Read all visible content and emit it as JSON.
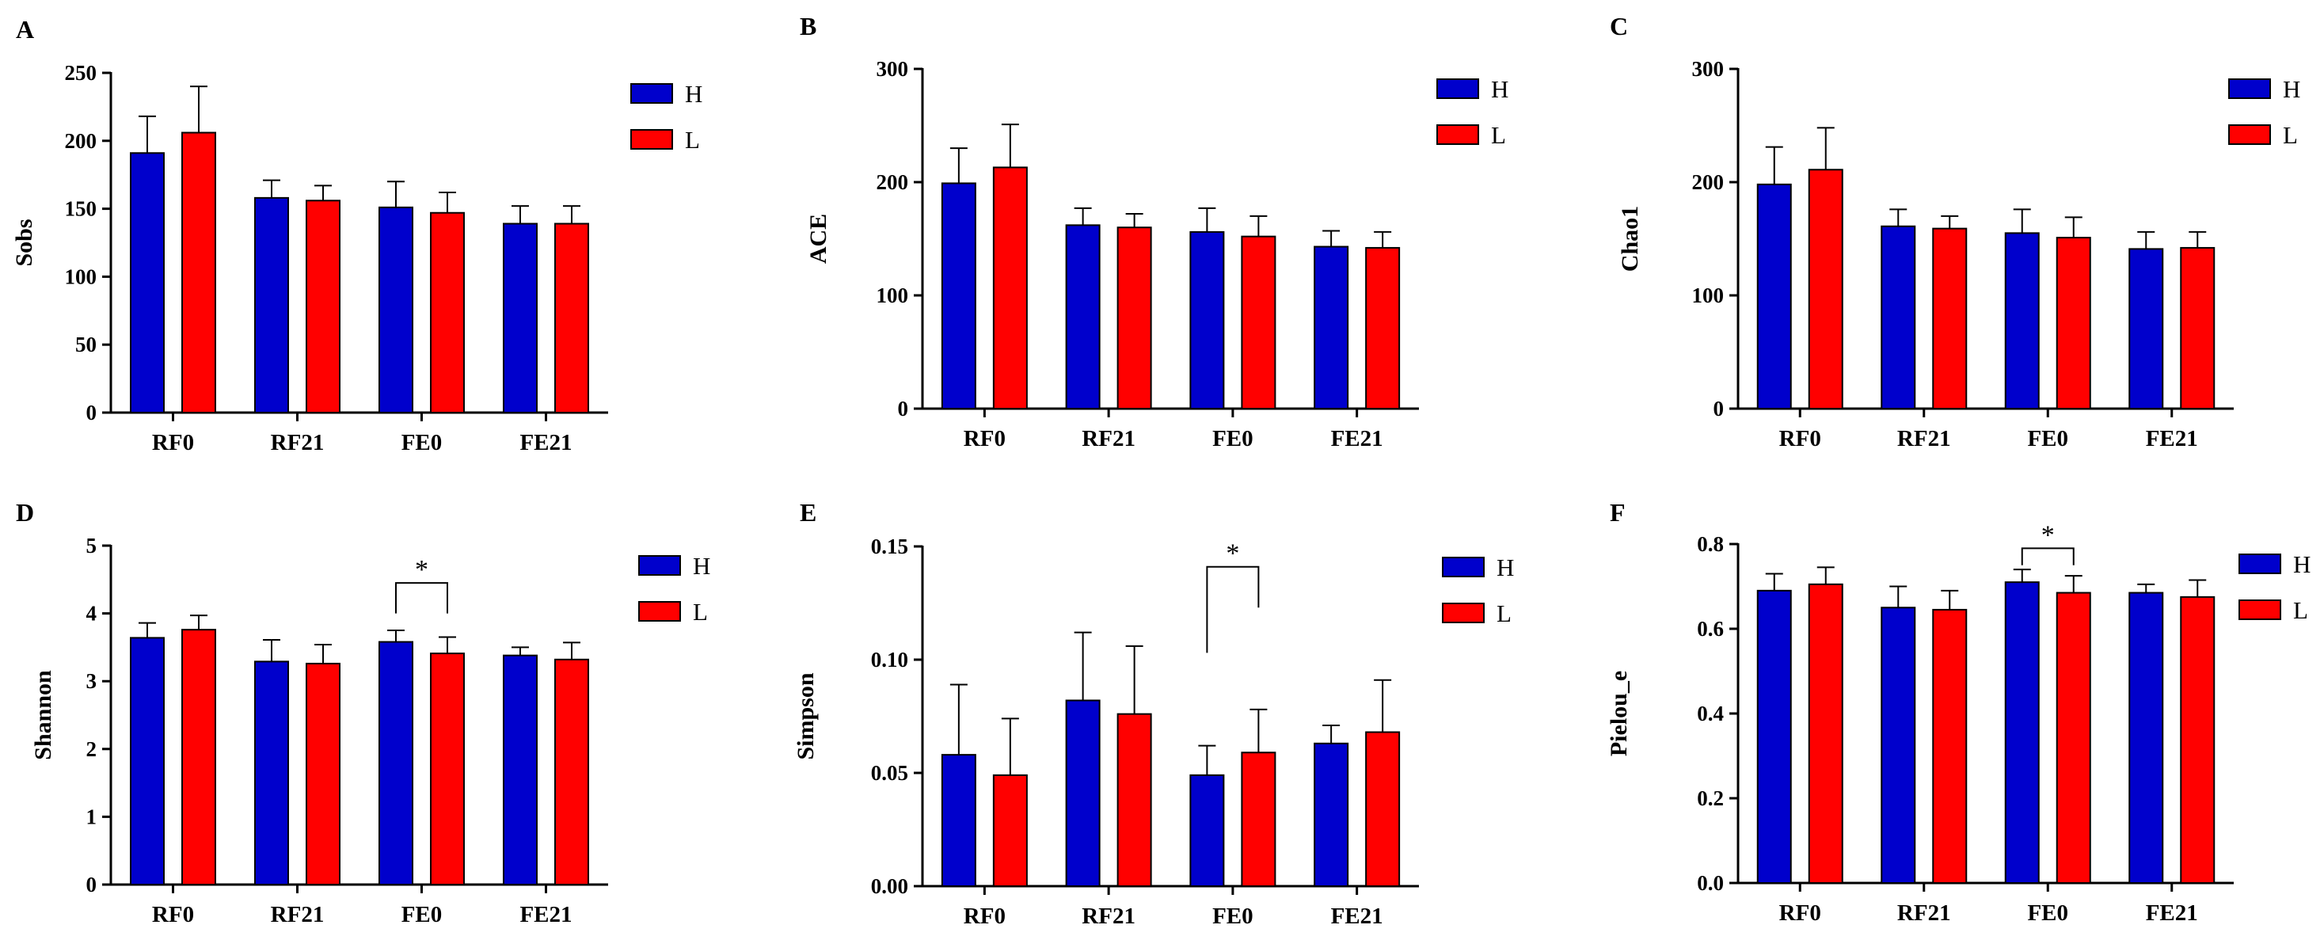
{
  "colors": {
    "H": "#0000cc",
    "L": "#ff0000"
  },
  "chart_data": [
    {
      "type": "bar",
      "panel": "A",
      "ylabel": "Sobs",
      "ylim": [
        0,
        250
      ],
      "yticks": [
        "0",
        "50",
        "100",
        "150",
        "200",
        "250"
      ],
      "categories": [
        "RF0",
        "RF21",
        "FE0",
        "FE21"
      ],
      "series": [
        {
          "name": "H",
          "values": [
            191,
            158,
            151,
            139
          ],
          "errors": [
            27,
            13,
            19,
            13
          ]
        },
        {
          "name": "L",
          "values": [
            206,
            156,
            147,
            139
          ],
          "errors": [
            34,
            11,
            15,
            13
          ]
        }
      ],
      "significance": []
    },
    {
      "type": "bar",
      "panel": "B",
      "ylabel": "ACE",
      "ylim": [
        0,
        300
      ],
      "yticks": [
        "0",
        "100",
        "200",
        "300"
      ],
      "categories": [
        "RF0",
        "RF21",
        "FE0",
        "FE21"
      ],
      "series": [
        {
          "name": "H",
          "values": [
            199,
            162,
            156,
            143
          ],
          "errors": [
            31,
            15,
            21,
            14
          ]
        },
        {
          "name": "L",
          "values": [
            213,
            160,
            152,
            142
          ],
          "errors": [
            38,
            12,
            18,
            14
          ]
        }
      ],
      "significance": []
    },
    {
      "type": "bar",
      "panel": "C",
      "ylabel": "Chao1",
      "ylim": [
        0,
        300
      ],
      "yticks": [
        "0",
        "100",
        "200",
        "300"
      ],
      "categories": [
        "RF0",
        "RF21",
        "FE0",
        "FE21"
      ],
      "series": [
        {
          "name": "H",
          "values": [
            198,
            161,
            155,
            141
          ],
          "errors": [
            33,
            15,
            21,
            15
          ]
        },
        {
          "name": "L",
          "values": [
            211,
            159,
            151,
            142
          ],
          "errors": [
            37,
            11,
            18,
            14
          ]
        }
      ],
      "significance": []
    },
    {
      "type": "bar",
      "panel": "D",
      "ylabel": "Shannon",
      "ylim": [
        0,
        5
      ],
      "yticks": [
        "0",
        "1",
        "2",
        "3",
        "4",
        "5"
      ],
      "categories": [
        "RF0",
        "RF21",
        "FE0",
        "FE21"
      ],
      "series": [
        {
          "name": "H",
          "values": [
            3.64,
            3.29,
            3.58,
            3.38
          ],
          "errors": [
            0.22,
            0.32,
            0.17,
            0.12
          ]
        },
        {
          "name": "L",
          "values": [
            3.76,
            3.26,
            3.41,
            3.32
          ],
          "errors": [
            0.21,
            0.28,
            0.24,
            0.25
          ]
        }
      ],
      "significance": [
        {
          "category": "FE0",
          "label": "*",
          "y_top": 4.45,
          "y_left": 4.0,
          "y_right": 4.0
        }
      ]
    },
    {
      "type": "bar",
      "panel": "E",
      "ylabel": "Simpson",
      "ylim": [
        0,
        0.15
      ],
      "yticks": [
        "0.00",
        "0.05",
        "0.10",
        "0.15"
      ],
      "categories": [
        "RF0",
        "RF21",
        "FE0",
        "FE21"
      ],
      "series": [
        {
          "name": "H",
          "values": [
            0.058,
            0.082,
            0.049,
            0.063
          ],
          "errors": [
            0.031,
            0.03,
            0.013,
            0.008
          ]
        },
        {
          "name": "L",
          "values": [
            0.049,
            0.076,
            0.059,
            0.068
          ],
          "errors": [
            0.025,
            0.03,
            0.019,
            0.023
          ]
        }
      ],
      "significance": [
        {
          "category": "FE0",
          "label": "*",
          "y_top": 0.141,
          "y_left": 0.103,
          "y_right": 0.123
        }
      ]
    },
    {
      "type": "bar",
      "panel": "F",
      "ylabel": "Pielou_e",
      "ylim": [
        0,
        0.8
      ],
      "yticks": [
        "0.0",
        "0.2",
        "0.4",
        "0.6",
        "0.8"
      ],
      "categories": [
        "RF0",
        "RF21",
        "FE0",
        "FE21"
      ],
      "series": [
        {
          "name": "H",
          "values": [
            0.69,
            0.65,
            0.71,
            0.685
          ],
          "errors": [
            0.04,
            0.05,
            0.03,
            0.02
          ]
        },
        {
          "name": "L",
          "values": [
            0.705,
            0.645,
            0.685,
            0.675
          ],
          "errors": [
            0.04,
            0.045,
            0.04,
            0.04
          ]
        }
      ],
      "significance": [
        {
          "category": "FE0",
          "label": "*",
          "y_top": 0.79,
          "y_left": 0.75,
          "y_right": 0.75
        }
      ]
    }
  ]
}
